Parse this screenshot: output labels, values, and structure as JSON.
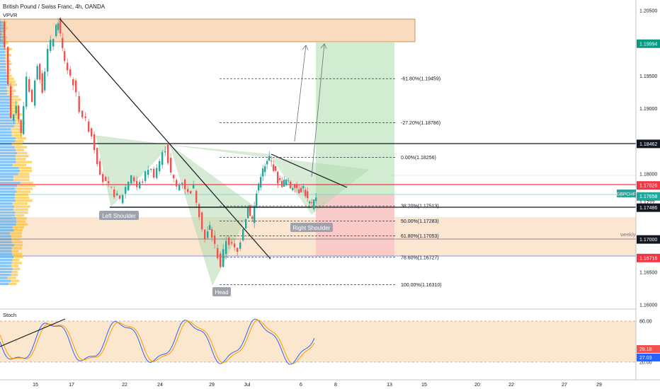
{
  "header": {
    "title": "British Pound / Swiss Franc, 4h, OANDA",
    "indicator": "VPVR"
  },
  "chart_data": {
    "type": "candlestick",
    "symbol": "GBPCHF",
    "x_ticks": [
      "15",
      "17",
      "22",
      "24",
      "29",
      "Jul",
      "6",
      "8",
      "13",
      "15",
      "20",
      "22",
      "27",
      "29"
    ],
    "y_ticks": [
      "1.20500",
      "1.20000",
      "1.19500",
      "1.19000",
      "1.18500",
      "1.18000",
      "1.17500",
      "1.17000",
      "1.16500",
      "1.16000"
    ],
    "ylim": [
      1.1595,
      1.2065
    ],
    "price_labels": [
      {
        "value": 1.19994,
        "text": "1.19994",
        "color": "#089981"
      },
      {
        "value": 1.18462,
        "text": "1.18462",
        "color": "#131722"
      },
      {
        "value": 1.17826,
        "text": "1.17826",
        "color": "#f23645"
      },
      {
        "value": 1.17658,
        "text": "1.17658",
        "color": "#26a69a"
      },
      {
        "value": 1.17486,
        "text": "1.17486",
        "color": "#131722"
      },
      {
        "value": 1.17,
        "text": "1.17000",
        "color": "#131722"
      },
      {
        "value": 1.16716,
        "text": "1.16716",
        "color": "#f23645"
      }
    ],
    "symbol_tag": "GBPCHF",
    "partial_tag": "1.17??",
    "zone_label": "weekly",
    "fib_levels": [
      {
        "value": 1.19459,
        "text": "-61.80%(1.19459)"
      },
      {
        "value": 1.18786,
        "text": "-27.20%(1.18786)"
      },
      {
        "value": 1.18256,
        "text": "0.00%(1.18256)"
      },
      {
        "value": 1.17513,
        "text": "38.20%(1.17513)"
      },
      {
        "value": 1.17283,
        "text": "50.00%(1.17283)"
      },
      {
        "value": 1.17053,
        "text": "61.80%(1.17053)"
      },
      {
        "value": 1.16727,
        "text": "78.60%(1.16727)"
      },
      {
        "value": 1.1631,
        "text": "100.00%(1.16310)"
      }
    ],
    "pattern_labels": [
      "Left Shoulder",
      "Head",
      "Right Shoulder"
    ],
    "stoch": {
      "title": "Stoch",
      "ticks": [
        "80.00",
        "20.00"
      ],
      "k_value": "28.18",
      "d_value": "27.03"
    }
  },
  "colors": {
    "up": "#26a69a",
    "down": "#ef5350",
    "accent_green": "#089981",
    "accent_red": "#f23645",
    "zone": "#f7d9b8",
    "profit": "#c8e6c9",
    "loss": "#ffcdd2"
  }
}
